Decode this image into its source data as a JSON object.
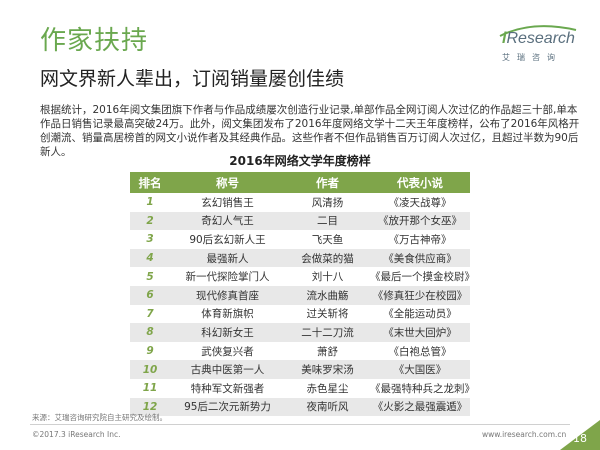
{
  "header": {
    "title": "作家扶持",
    "subtitle": "网文界新人辈出，订阅销量屡创佳绩"
  },
  "logo": {
    "brand_i": "i",
    "brand_rest": "Research",
    "sub": "艾瑞咨询"
  },
  "intro": "根据统计，2016年阅文集团旗下作者与作品成绩屡次创造行业记录,单部作品全网订阅人次过亿的作品超三十部,单本作品日销售记录最高突破24万。此外，阅文集团发布了2016年度网络文学十二天王年度榜样，公布了2016年风格开创潮流、销量高居榜首的网文小说作者及其经典作品。这些作者不但作品销售百万订阅人次过亿，且超过半数为90后新人。",
  "table": {
    "title": "2016年网络文学年度榜样",
    "headers": [
      "排名",
      "称号",
      "作者",
      "代表小说"
    ],
    "rows": [
      [
        "1",
        "玄幻销售王",
        "风清扬",
        "《凌天战尊》"
      ],
      [
        "2",
        "奇幻人气王",
        "二目",
        "《放开那个女巫》"
      ],
      [
        "3",
        "90后玄幻新人王",
        "飞天鱼",
        "《万古神帝》"
      ],
      [
        "4",
        "最强新人",
        "会做菜的猫",
        "《美食供应商》"
      ],
      [
        "5",
        "新一代探险掌门人",
        "刘十八",
        "《最后一个摸金校尉》"
      ],
      [
        "6",
        "现代修真首座",
        "流水曲觞",
        "《修真狂少在校园》"
      ],
      [
        "7",
        "体育新旗帜",
        "过关斩将",
        "《全能运动员》"
      ],
      [
        "8",
        "科幻新女王",
        "二十二刀流",
        "《末世大回炉》"
      ],
      [
        "9",
        "武侠复兴者",
        "萧舒",
        "《白袍总管》"
      ],
      [
        "10",
        "古典中医第一人",
        "美味罗宋汤",
        "《大国医》"
      ],
      [
        "11",
        "特种军文新强者",
        "赤色星尘",
        "《最强特种兵之龙刺》"
      ],
      [
        "12",
        "95后二次元新势力",
        "夜南听风",
        "《火影之最强震遁》"
      ]
    ]
  },
  "footer": {
    "source": "来源：艾瑞咨询研究院自主研究及绘制。",
    "copyright": "©2017.3 iResearch Inc.",
    "url": "www.iresearch.com.cn",
    "page": "18"
  },
  "colors": {
    "accent": "#7fa54a",
    "title": "#6aa84f",
    "row_alt": "#e8e8e8"
  }
}
